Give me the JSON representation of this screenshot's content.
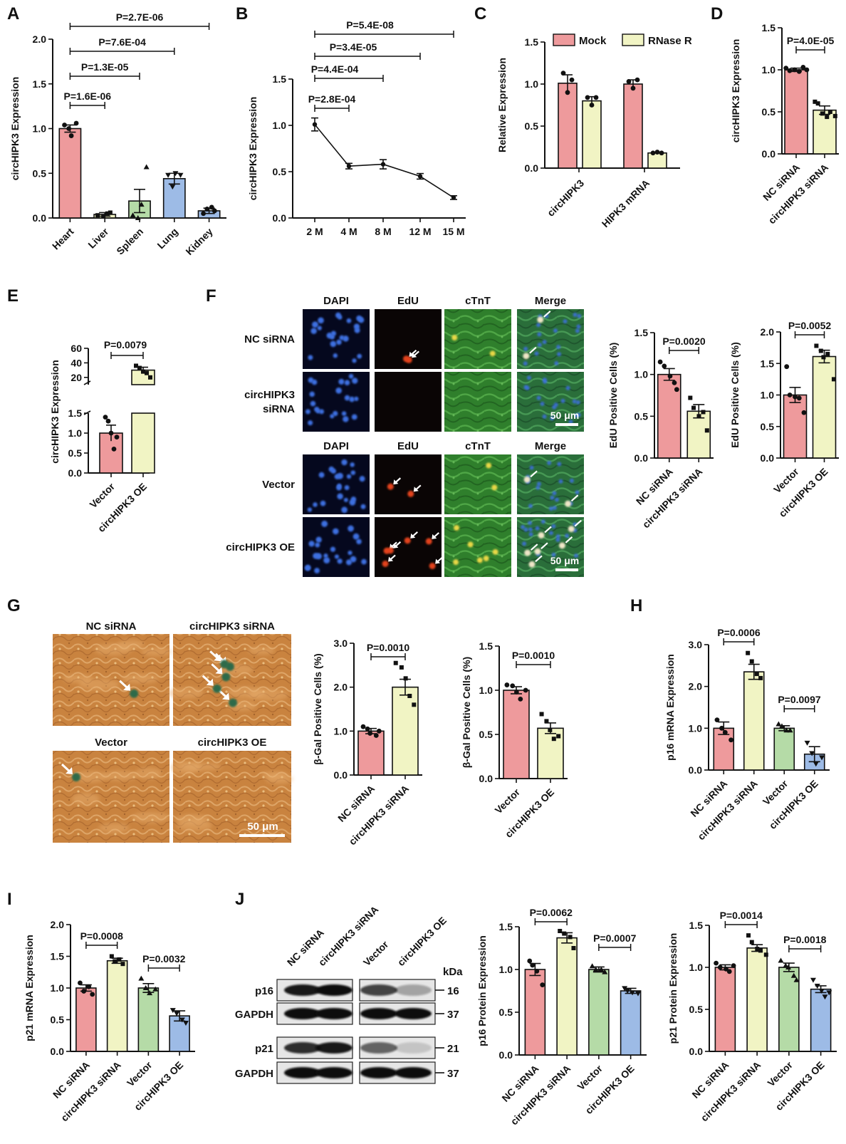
{
  "panel_letters": [
    "A",
    "B",
    "C",
    "D",
    "E",
    "F",
    "G",
    "H",
    "I",
    "J"
  ],
  "colors": {
    "red": "#ee9a9c",
    "yellow": "#f1f4c4",
    "green": "#b5dba7",
    "blue": "#9dbbe6",
    "axis": "#111111"
  },
  "chart_data": [
    {
      "id": "A",
      "type": "bar",
      "ylabel": "circHIPK3 Expression",
      "categories": [
        "Heart",
        "Liver",
        "Spleen",
        "Lung",
        "Kidney"
      ],
      "values": [
        1.0,
        0.04,
        0.19,
        0.44,
        0.08
      ],
      "errors": [
        0.04,
        0.02,
        0.13,
        0.06,
        0.03
      ],
      "points": [
        [
          1.04,
          1.0,
          0.92,
          1.06
        ],
        [
          0.03,
          0.02,
          0.05,
          0.06
        ],
        [
          0.03,
          0.0,
          0.15,
          0.57
        ],
        [
          0.48,
          0.35,
          0.5,
          0.48
        ],
        [
          0.05,
          0.1,
          0.12,
          0.08
        ]
      ],
      "ylim": [
        0,
        2.0
      ],
      "yticks": [
        "0.0",
        "0.5",
        "1.0",
        "1.5",
        "2.0"
      ],
      "colors": [
        "#ee9a9c",
        "#f1f4c4",
        "#b5dba7",
        "#9dbbe6",
        "#9dbbe6"
      ],
      "sig": [
        {
          "p": "P=1.6E-06",
          "from": 0,
          "to": 1
        },
        {
          "p": "P=1.3E-05",
          "from": 0,
          "to": 2
        },
        {
          "p": "P=7.6E-04",
          "from": 0,
          "to": 3
        },
        {
          "p": "P=2.7E-06",
          "from": 0,
          "to": 4
        }
      ]
    },
    {
      "id": "B",
      "type": "line",
      "ylabel": "circHIPK3 Expression",
      "categories": [
        "2 M",
        "4 M",
        "8 M",
        "12 M",
        "15 M"
      ],
      "values": [
        1.01,
        0.56,
        0.58,
        0.45,
        0.22
      ],
      "errors": [
        0.07,
        0.03,
        0.05,
        0.03,
        0.02
      ],
      "ylim": [
        0,
        1.5
      ],
      "yticks": [
        "0.0",
        "0.5",
        "1.0",
        "1.5"
      ],
      "sig": [
        {
          "p": "P=2.8E-04",
          "from": 0,
          "to": 1
        },
        {
          "p": "P=4.4E-04",
          "from": 0,
          "to": 2
        },
        {
          "p": "P=3.4E-05",
          "from": 0,
          "to": 3
        },
        {
          "p": "P=5.4E-08",
          "from": 0,
          "to": 4
        }
      ]
    },
    {
      "id": "C",
      "type": "bar",
      "ylabel": "Relative Expression",
      "categories": [
        "circHIPK3",
        "HIPK3 mRNA"
      ],
      "series": [
        {
          "name": "Mock",
          "color": "#ee9a9c",
          "values": [
            1.01,
            1.0
          ],
          "errors": [
            0.1,
            0.05
          ],
          "points": [
            [
              1.13,
              0.9,
              1.05
            ],
            [
              1.03,
              0.95,
              1.05
            ]
          ]
        },
        {
          "name": "RNase R",
          "color": "#f1f4c4",
          "values": [
            0.8,
            0.18
          ],
          "errors": [
            0.05,
            0.01
          ],
          "points": [
            [
              0.84,
              0.75,
              0.84
            ],
            [
              0.18,
              0.19,
              0.18
            ]
          ]
        }
      ],
      "ylim": [
        0,
        1.5
      ],
      "yticks": [
        "0.0",
        "0.5",
        "1.0",
        "1.5"
      ],
      "legend": "top"
    },
    {
      "id": "D",
      "type": "bar",
      "ylabel": "circHIPK3 Expression",
      "categories": [
        "NC siRNA",
        "circHIPK3 siRNA"
      ],
      "values": [
        1.0,
        0.52
      ],
      "errors": [
        0.02,
        0.05
      ],
      "points": [
        [
          1.02,
          0.99,
          1.0,
          0.98,
          1.03,
          1.0
        ],
        [
          0.62,
          0.6,
          0.48,
          0.44,
          0.5,
          0.45
        ]
      ],
      "ylim": [
        0,
        1.5
      ],
      "yticks": [
        "0.0",
        "0.5",
        "1.0",
        "1.5"
      ],
      "colors": [
        "#ee9a9c",
        "#f1f4c4"
      ],
      "sig": [
        {
          "p": "P=4.0E-05",
          "from": 0,
          "to": 1
        }
      ]
    },
    {
      "id": "E",
      "type": "bar",
      "ylabel": "circHIPK3 Expression",
      "categories": [
        "Vector",
        "circHIPK3 OE"
      ],
      "values": [
        1.0,
        30
      ],
      "errors": [
        0.2,
        4
      ],
      "points": [
        [
          1.4,
          1.3,
          1.0,
          0.6,
          0.9
        ],
        [
          36,
          33,
          28,
          26,
          20
        ]
      ],
      "ylim_lower": [
        0,
        1.5
      ],
      "ylim_upper": [
        10,
        60
      ],
      "yticks_lower": [
        "0.0",
        "0.5",
        "1.0",
        "1.5"
      ],
      "yticks_upper": [
        "20",
        "40",
        "60"
      ],
      "colors": [
        "#ee9a9c",
        "#f1f4c4"
      ],
      "sig": [
        {
          "p": "P=0.0079",
          "from": 0,
          "to": 1
        }
      ]
    },
    {
      "id": "F1",
      "type": "bar",
      "ylabel": "EdU Positive Cells (%)",
      "categories": [
        "NC siRNA",
        "circHIPK3 siRNA"
      ],
      "values": [
        1.0,
        0.56
      ],
      "errors": [
        0.07,
        0.08
      ],
      "points": [
        [
          1.15,
          1.1,
          0.98,
          0.9,
          0.82
        ],
        [
          0.72,
          0.6,
          0.5,
          0.55,
          0.33
        ]
      ],
      "ylim": [
        0,
        1.5
      ],
      "yticks": [
        "0.0",
        "0.5",
        "1.0",
        "1.5"
      ],
      "colors": [
        "#ee9a9c",
        "#f1f4c4"
      ],
      "sig": [
        {
          "p": "P=0.0020",
          "from": 0,
          "to": 1
        }
      ]
    },
    {
      "id": "F2",
      "type": "bar",
      "ylabel": "EdU Positive Cells (%)",
      "categories": [
        "Vector",
        "circHIPK3 OE"
      ],
      "values": [
        1.0,
        1.61
      ],
      "errors": [
        0.12,
        0.1
      ],
      "points": [
        [
          1.45,
          1.0,
          0.97,
          0.95,
          0.72
        ],
        [
          1.78,
          1.7,
          1.6,
          1.65,
          1.25
        ]
      ],
      "ylim": [
        0,
        2.0
      ],
      "yticks": [
        "0.0",
        "0.5",
        "1.0",
        "1.5",
        "2.0"
      ],
      "colors": [
        "#ee9a9c",
        "#f1f4c4"
      ],
      "sig": [
        {
          "p": "P=0.0052",
          "from": 0,
          "to": 1
        }
      ]
    },
    {
      "id": "G1",
      "type": "bar",
      "ylabel": "β-Gal Positive Cells (%)",
      "categories": [
        "NC siRNA",
        "circHIPK3 siRNA"
      ],
      "values": [
        1.0,
        2.0
      ],
      "errors": [
        0.06,
        0.18
      ],
      "points": [
        [
          1.1,
          1.05,
          0.95,
          0.9,
          1.0
        ],
        [
          2.55,
          2.45,
          2.2,
          1.8,
          1.6
        ]
      ],
      "ylim": [
        0,
        3.0
      ],
      "yticks": [
        "0.0",
        "1.0",
        "2.0",
        "3.0"
      ],
      "colors": [
        "#ee9a9c",
        "#f1f4c4"
      ],
      "sig": [
        {
          "p": "P=0.0010",
          "from": 0,
          "to": 1
        }
      ]
    },
    {
      "id": "G2",
      "type": "bar",
      "ylabel": "β-Gal Positive Cells (%)",
      "categories": [
        "Vector",
        "circHIPK3 OE"
      ],
      "values": [
        1.0,
        0.57
      ],
      "errors": [
        0.04,
        0.06
      ],
      "points": [
        [
          1.06,
          1.05,
          0.98,
          0.9,
          1.0
        ],
        [
          0.73,
          0.65,
          0.55,
          0.45,
          0.48
        ]
      ],
      "ylim": [
        0,
        1.5
      ],
      "yticks": [
        "0.0",
        "0.5",
        "1.0",
        "1.5"
      ],
      "colors": [
        "#ee9a9c",
        "#f1f4c4"
      ],
      "sig": [
        {
          "p": "P=0.0010",
          "from": 0,
          "to": 1
        }
      ]
    },
    {
      "id": "H",
      "type": "bar",
      "ylabel": "p16 mRNA Expression",
      "categories": [
        "NC siRNA",
        "circHIPK3 siRNA",
        "Vector",
        "circHIPK3 OE"
      ],
      "values": [
        1.0,
        2.35,
        1.0,
        0.38
      ],
      "errors": [
        0.15,
        0.18,
        0.06,
        0.18
      ],
      "points": [
        [
          1.2,
          1.0,
          0.9,
          0.72
        ],
        [
          2.8,
          2.6,
          2.3,
          2.2
        ],
        [
          1.1,
          1.05,
          0.95,
          0.95
        ],
        [
          0.65,
          0.4,
          0.15,
          0.3
        ]
      ],
      "ylim": [
        0,
        3.0
      ],
      "yticks": [
        "0.0",
        "1.0",
        "2.0",
        "3.0"
      ],
      "colors": [
        "#ee9a9c",
        "#f1f4c4",
        "#b5dba7",
        "#9dbbe6"
      ],
      "sig": [
        {
          "p": "P=0.0006",
          "from": 0,
          "to": 1
        },
        {
          "p": "P=0.0097",
          "from": 2,
          "to": 3
        }
      ]
    },
    {
      "id": "I",
      "type": "bar",
      "ylabel": "p21 mRNA Expression",
      "categories": [
        "NC siRNA",
        "circHIPK3 siRNA",
        "Vector",
        "circHIPK3 OE"
      ],
      "values": [
        1.0,
        1.43,
        1.0,
        0.56
      ],
      "errors": [
        0.05,
        0.04,
        0.07,
        0.08
      ],
      "points": [
        [
          1.08,
          0.95,
          1.02,
          0.9
        ],
        [
          1.5,
          1.42,
          1.45,
          1.38
        ],
        [
          1.15,
          1.0,
          0.92,
          0.98
        ],
        [
          0.65,
          0.6,
          0.5,
          0.45
        ]
      ],
      "ylim": [
        0,
        2.0
      ],
      "yticks": [
        "0.0",
        "0.5",
        "1.0",
        "1.5",
        "2.0"
      ],
      "colors": [
        "#ee9a9c",
        "#f1f4c4",
        "#b5dba7",
        "#9dbbe6"
      ],
      "sig": [
        {
          "p": "P=0.0008",
          "from": 0,
          "to": 1
        },
        {
          "p": "P=0.0032",
          "from": 2,
          "to": 3
        }
      ]
    },
    {
      "id": "J1",
      "type": "bar",
      "ylabel": "p16 Protein Expression",
      "categories": [
        "NC siRNA",
        "circHIPK3 siRNA",
        "Vector",
        "circHIPK3 OE"
      ],
      "values": [
        1.0,
        1.37,
        1.0,
        0.75
      ],
      "errors": [
        0.07,
        0.06,
        0.03,
        0.03
      ],
      "points": [
        [
          1.1,
          1.05,
          0.98,
          0.82
        ],
        [
          1.45,
          1.42,
          1.38,
          1.25
        ],
        [
          1.04,
          1.0,
          1.0,
          0.97
        ],
        [
          0.78,
          0.75,
          0.73,
          0.72
        ]
      ],
      "ylim": [
        0,
        1.5
      ],
      "yticks": [
        "0.0",
        "0.5",
        "1.0",
        "1.5"
      ],
      "colors": [
        "#ee9a9c",
        "#f1f4c4",
        "#b5dba7",
        "#9dbbe6"
      ],
      "sig": [
        {
          "p": "P=0.0062",
          "from": 0,
          "to": 1
        },
        {
          "p": "P=0.0007",
          "from": 2,
          "to": 3
        }
      ]
    },
    {
      "id": "J2",
      "type": "bar",
      "ylabel": "p21 Protein Expression",
      "categories": [
        "NC siRNA",
        "circHIPK3 siRNA",
        "Vector",
        "circHIPK3 OE"
      ],
      "values": [
        1.0,
        1.23,
        1.0,
        0.74
      ],
      "errors": [
        0.03,
        0.04,
        0.05,
        0.04
      ],
      "points": [
        [
          1.05,
          1.0,
          0.98,
          0.95,
          1.02
        ],
        [
          1.38,
          1.3,
          1.22,
          1.2,
          1.15
        ],
        [
          1.08,
          1.02,
          1.0,
          0.9,
          0.85
        ],
        [
          0.85,
          0.78,
          0.72,
          0.65,
          0.7
        ]
      ],
      "ylim": [
        0,
        1.5
      ],
      "yticks": [
        "0.0",
        "0.5",
        "1.0",
        "1.5"
      ],
      "colors": [
        "#ee9a9c",
        "#f1f4c4",
        "#b5dba7",
        "#9dbbe6"
      ],
      "sig": [
        {
          "p": "P=0.0014",
          "from": 0,
          "to": 1
        },
        {
          "p": "P=0.0018",
          "from": 2,
          "to": 3
        }
      ]
    }
  ],
  "panel_F": {
    "columns": [
      "DAPI",
      "EdU",
      "cTnT",
      "Merge"
    ],
    "rows_top": [
      "NC siRNA",
      "circHIPK3\nsiRNA"
    ],
    "rows_bottom": [
      "Vector",
      "circHIPK3 OE"
    ],
    "scale": "50 μm"
  },
  "panel_G": {
    "labels": [
      "NC siRNA",
      "circHIPK3 siRNA",
      "Vector",
      "circHIPK3 OE"
    ],
    "scale": "50 μm"
  },
  "panel_J_blot": {
    "lanes": [
      "NC siRNA",
      "circHIPK3 siRNA",
      "Vector",
      "circHIPK3 OE"
    ],
    "kda_label": "kDa",
    "rows": [
      {
        "label": "p16",
        "kda": "16"
      },
      {
        "label": "GAPDH",
        "kda": "37"
      },
      {
        "label": "p21",
        "kda": "21"
      },
      {
        "label": "GAPDH",
        "kda": "37"
      }
    ]
  }
}
